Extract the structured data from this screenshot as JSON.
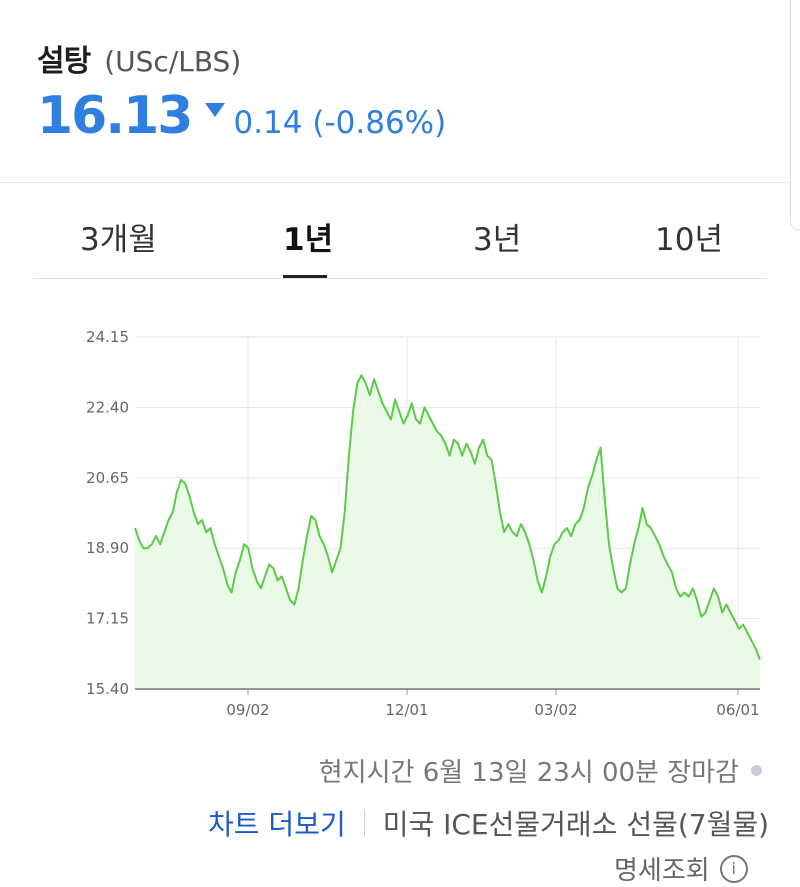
{
  "header": {
    "title": "설탕",
    "unit": "(USc/LBS)",
    "price": "16.13",
    "change": "0.14 (-0.86%)",
    "direction": "down",
    "accent_color": "#2f7ee0"
  },
  "tabs": [
    {
      "label": "3개월",
      "active": false
    },
    {
      "label": "1년",
      "active": true
    },
    {
      "label": "3년",
      "active": false
    },
    {
      "label": "10년",
      "active": false
    }
  ],
  "chart_data": {
    "type": "area",
    "title": "",
    "xlabel": "",
    "ylabel": "",
    "ylim": [
      15.4,
      24.15
    ],
    "yticks": [
      "24.15",
      "22.40",
      "20.65",
      "18.90",
      "17.15",
      "15.40"
    ],
    "xticks": [
      "09/02",
      "12/01",
      "03/02",
      "06/01"
    ],
    "grid": true,
    "line_color": "#5cc94a",
    "fill_color": "#e9fbe6",
    "series": [
      {
        "values": [
          19.4,
          19.1,
          18.9,
          18.9,
          19.0,
          19.2,
          19.0,
          19.3,
          19.6,
          19.8,
          20.3,
          20.6,
          20.5,
          20.2,
          19.8,
          19.5,
          19.6,
          19.3,
          19.4,
          19.0,
          18.7,
          18.4,
          18.0,
          17.8,
          18.3,
          18.6,
          19.0,
          18.9,
          18.4,
          18.1,
          17.9,
          18.2,
          18.5,
          18.4,
          18.1,
          18.2,
          17.9,
          17.6,
          17.5,
          17.9,
          18.6,
          19.2,
          19.7,
          19.6,
          19.2,
          19.0,
          18.7,
          18.3,
          18.6,
          18.9,
          19.8,
          21.2,
          22.3,
          23.0,
          23.2,
          23.0,
          22.7,
          23.1,
          22.8,
          22.5,
          22.3,
          22.1,
          22.6,
          22.3,
          22.0,
          22.2,
          22.5,
          22.1,
          22.0,
          22.4,
          22.2,
          22.0,
          21.8,
          21.7,
          21.5,
          21.2,
          21.6,
          21.5,
          21.2,
          21.5,
          21.3,
          21.0,
          21.4,
          21.6,
          21.2,
          21.1,
          20.5,
          19.8,
          19.3,
          19.5,
          19.3,
          19.2,
          19.5,
          19.3,
          19.0,
          18.6,
          18.1,
          17.8,
          18.2,
          18.7,
          19.0,
          19.1,
          19.3,
          19.4,
          19.2,
          19.5,
          19.6,
          19.9,
          20.4,
          20.7,
          21.1,
          21.4,
          20.1,
          19.0,
          18.4,
          17.9,
          17.8,
          17.9,
          18.5,
          19.0,
          19.4,
          19.9,
          19.5,
          19.4,
          19.2,
          19.0,
          18.7,
          18.5,
          18.3,
          17.9,
          17.7,
          17.8,
          17.7,
          17.9,
          17.6,
          17.2,
          17.3,
          17.6,
          17.9,
          17.7,
          17.3,
          17.5,
          17.3,
          17.1,
          16.9,
          17.0,
          16.8,
          16.6,
          16.4,
          16.13
        ]
      }
    ]
  },
  "footer": {
    "time_status": "현지시간 6월 13일 23시 00분 장마감",
    "more_chart": "차트 더보기",
    "exchange": "미국 ICE선물거래소 선물(7월물)",
    "detail_link": "명세조회",
    "info_icon": "i"
  }
}
